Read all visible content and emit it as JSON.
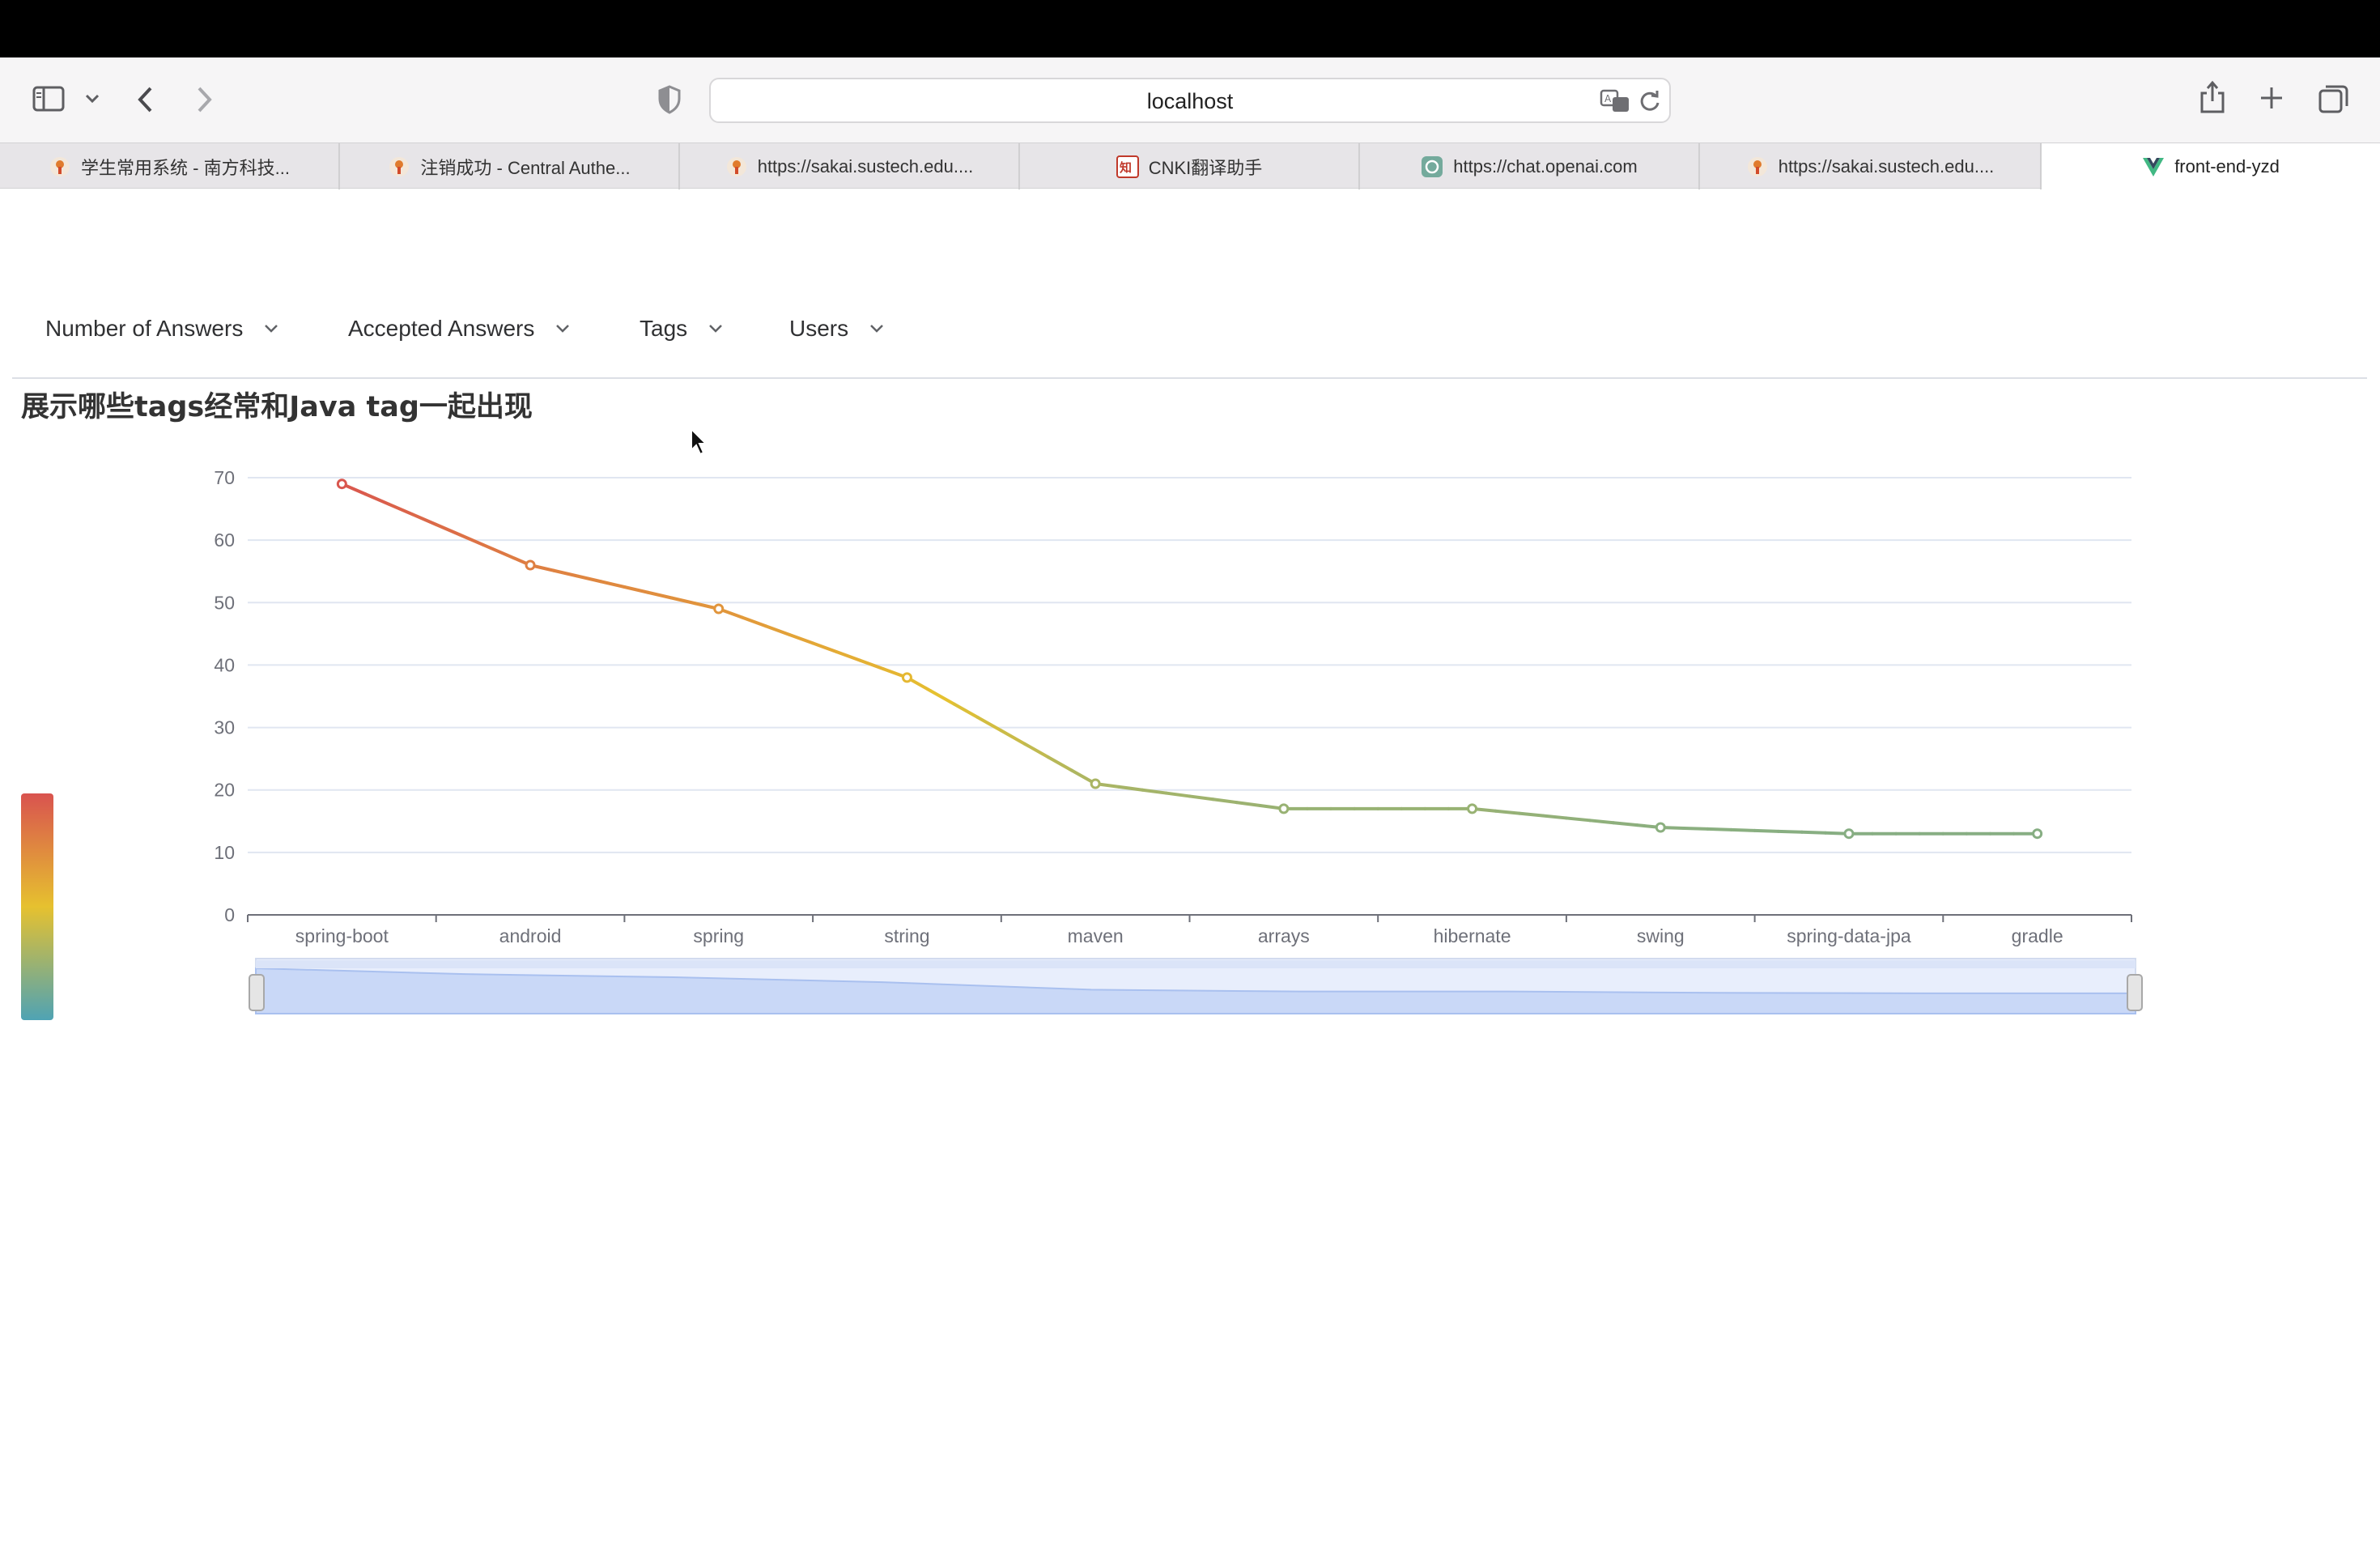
{
  "browser": {
    "address": "localhost",
    "tabs": [
      {
        "label": "学生常用系统 - 南方科技...",
        "icon": "sustech-icon",
        "active": false
      },
      {
        "label": "注销成功 - Central Authe...",
        "icon": "sustech-icon",
        "active": false
      },
      {
        "label": "https://sakai.sustech.edu....",
        "icon": "sustech-icon",
        "active": false
      },
      {
        "label": "CNKI翻译助手",
        "icon": "cnki-icon",
        "active": false
      },
      {
        "label": "https://chat.openai.com",
        "icon": "openai-icon",
        "active": false
      },
      {
        "label": "https://sakai.sustech.edu....",
        "icon": "sustech-icon",
        "active": false
      },
      {
        "label": "front-end-yzd",
        "icon": "vue-icon",
        "active": true
      }
    ]
  },
  "menu": {
    "items": [
      {
        "label": "Number of Answers"
      },
      {
        "label": "Accepted Answers"
      },
      {
        "label": "Tags"
      },
      {
        "label": "Users"
      }
    ]
  },
  "page": {
    "title": "展示哪些tags经常和Java tag一起出现"
  },
  "chart_data": {
    "type": "line",
    "title": "",
    "xlabel": "",
    "ylabel": "",
    "categories": [
      "spring-boot",
      "android",
      "spring",
      "string",
      "maven",
      "arrays",
      "hibernate",
      "swing",
      "spring-data-jpa",
      "gradle"
    ],
    "values": [
      69,
      56,
      49,
      38,
      21,
      17,
      17,
      14,
      13,
      13
    ],
    "ylim": [
      0,
      70
    ],
    "yticks": [
      0,
      10,
      20,
      30,
      40,
      50,
      60,
      70
    ],
    "grid": true,
    "legend": "none",
    "visual_map": {
      "min_color": "#4fa3b4",
      "mid_color": "#e6c12f",
      "max_color": "#d9534f"
    },
    "data_zoom": {
      "start": 0,
      "end": 100
    }
  }
}
